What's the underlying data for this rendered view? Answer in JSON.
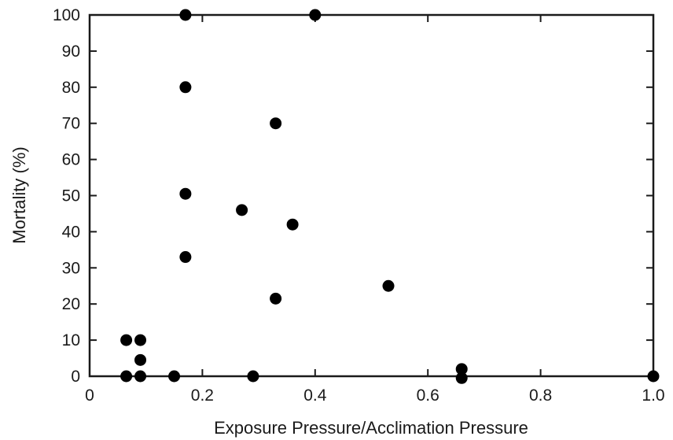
{
  "chart_data": {
    "type": "scatter",
    "title": "",
    "xlabel": "Exposure Pressure/Acclimation Pressure",
    "ylabel": "Mortality (%)",
    "xlim": [
      0,
      1.0
    ],
    "ylim": [
      0,
      100
    ],
    "x_ticks": [
      0,
      0.2,
      0.4,
      0.6,
      0.8,
      1.0
    ],
    "x_tick_labels": [
      "0",
      "0.2",
      "0.4",
      "0.6",
      "0.8",
      "1.0"
    ],
    "y_ticks": [
      0,
      10,
      20,
      30,
      40,
      50,
      60,
      70,
      80,
      90,
      100
    ],
    "y_tick_labels": [
      "0",
      "10",
      "20",
      "30",
      "40",
      "50",
      "60",
      "70",
      "80",
      "90",
      "100"
    ],
    "grid": false,
    "legend": "none",
    "marker_color": "#000000",
    "points": [
      {
        "x": 0.17,
        "y": 100
      },
      {
        "x": 0.4,
        "y": 100
      },
      {
        "x": 0.17,
        "y": 80
      },
      {
        "x": 0.33,
        "y": 70
      },
      {
        "x": 0.17,
        "y": 50.5
      },
      {
        "x": 0.27,
        "y": 46
      },
      {
        "x": 0.36,
        "y": 42
      },
      {
        "x": 0.17,
        "y": 33
      },
      {
        "x": 0.53,
        "y": 25
      },
      {
        "x": 0.33,
        "y": 21.5
      },
      {
        "x": 0.065,
        "y": 10
      },
      {
        "x": 0.09,
        "y": 10
      },
      {
        "x": 0.09,
        "y": 4.5
      },
      {
        "x": 0.065,
        "y": 0
      },
      {
        "x": 0.09,
        "y": 0
      },
      {
        "x": 0.15,
        "y": 0
      },
      {
        "x": 0.29,
        "y": 0
      },
      {
        "x": 0.66,
        "y": 2
      },
      {
        "x": 0.66,
        "y": -0.5
      },
      {
        "x": 1.0,
        "y": 0
      }
    ]
  }
}
